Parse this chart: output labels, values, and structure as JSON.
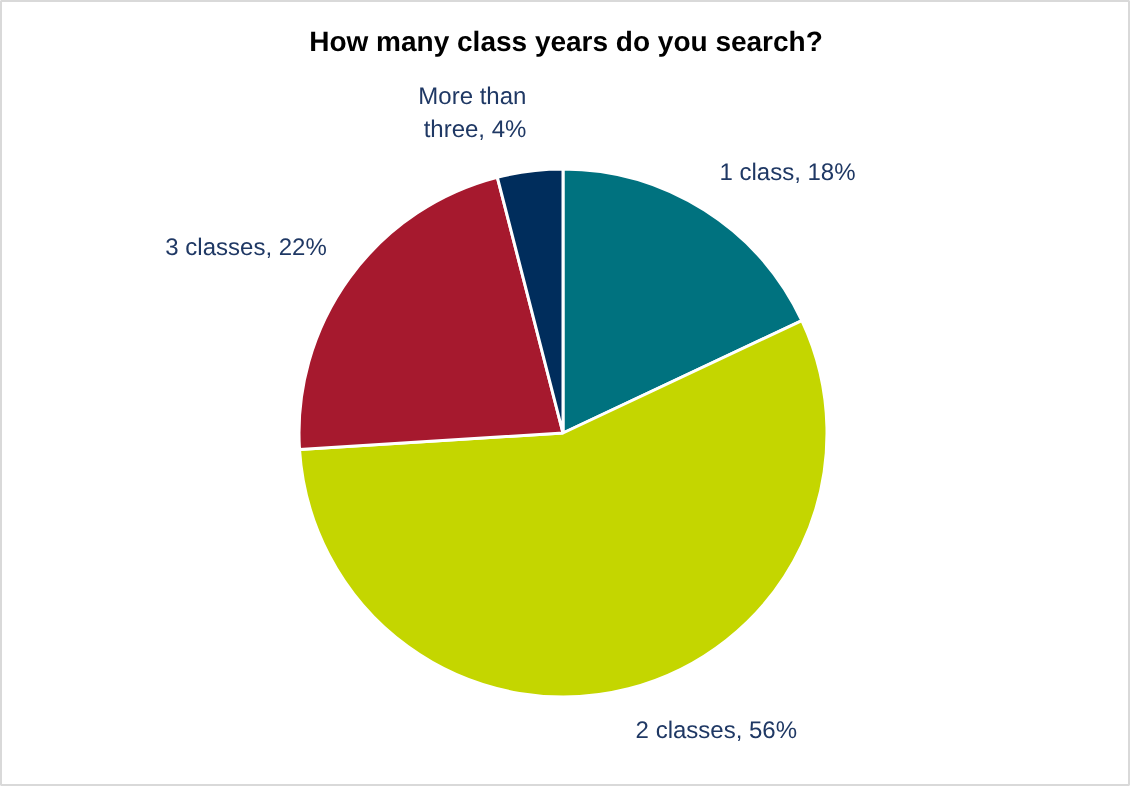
{
  "chart_data": {
    "type": "pie",
    "title": "How many class years do you search?",
    "categories": [
      "1 class",
      "2 classes",
      "3 classes",
      "More than three"
    ],
    "values": [
      18,
      56,
      22,
      4
    ],
    "value_labels": [
      "18%",
      "56%",
      "22%",
      "4%"
    ],
    "colors": [
      "#00727f",
      "#c4d600",
      "#a6192e",
      "#002d5c"
    ]
  }
}
